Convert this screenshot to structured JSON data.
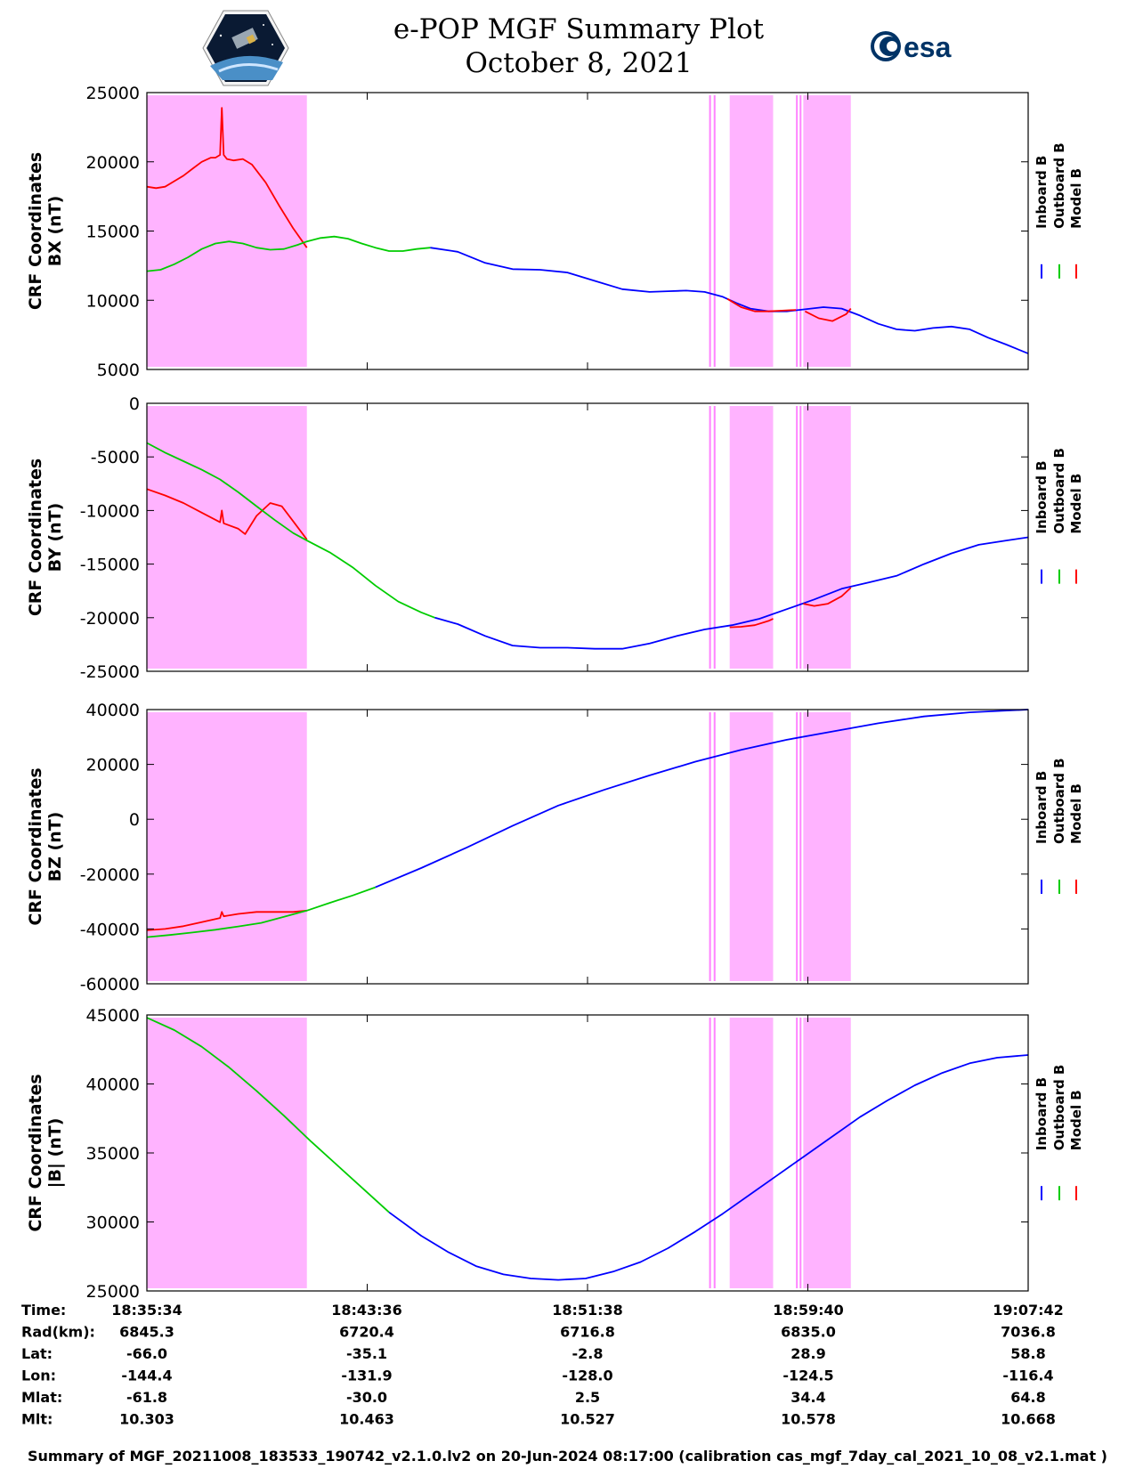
{
  "header": {
    "title": "e-POP MGF Summary Plot",
    "date": "October 8, 2021",
    "left_logo": "cassiope-mission-logo",
    "right_logo_text": "esa"
  },
  "colors": {
    "inboard": "#0000ff",
    "outboard": "#00cc00",
    "model": "#ff0000",
    "shade": "#ffb3ff",
    "shade_line": "#ff66ff"
  },
  "legend": [
    "Inboard B",
    "Outboard B",
    "Model B"
  ],
  "info_table": {
    "labels": [
      "Time:",
      "Rad(km):",
      "Lat:",
      "Lon:",
      "Mlat:",
      "Mlt:"
    ],
    "columns": [
      [
        "18:35:34",
        "6845.3",
        "-66.0",
        "-144.4",
        "-61.8",
        "10.303"
      ],
      [
        "18:43:36",
        "6720.4",
        "-35.1",
        "-131.9",
        "-30.0",
        "10.463"
      ],
      [
        "18:51:38",
        "6716.8",
        "-2.8",
        "-128.0",
        "2.5",
        "10.527"
      ],
      [
        "18:59:40",
        "6835.0",
        "28.9",
        "-124.5",
        "34.4",
        "10.578"
      ],
      [
        "19:07:42",
        "7036.8",
        "58.8",
        "-116.4",
        "64.8",
        "10.668"
      ]
    ]
  },
  "footer": "Summary of MGF_20211008_183533_190742_v2.1.0.lv2 on 20-Jun-2024 08:17:00 (calibration cas_mgf_7day_cal_2021_10_08_v2.1.mat )",
  "chart_data": [
    {
      "type": "line",
      "ylabel": [
        "CRF Coordinates",
        "BX (nT)"
      ],
      "ylim": [
        5000,
        25000
      ],
      "yticks": [
        5000,
        10000,
        15000,
        20000,
        25000
      ],
      "xlim": [
        0,
        1928
      ],
      "xticks": [
        "18:35:34",
        "18:43:36",
        "18:51:38",
        "18:59:40",
        "19:07:42"
      ],
      "shaded_intervals_s": [
        [
          0,
          350
        ],
        [
          1230,
          1234
        ],
        [
          1240,
          1244
        ],
        [
          1275,
          1370
        ],
        [
          1420,
          1424
        ],
        [
          1428,
          1432
        ],
        [
          1436,
          1540
        ]
      ],
      "series": [
        {
          "name": "Model B",
          "color_key": "model",
          "x": [
            0,
            20,
            40,
            60,
            80,
            100,
            120,
            140,
            150,
            160,
            164,
            168,
            175,
            190,
            210,
            230,
            260,
            290,
            320,
            350
          ],
          "values": [
            18200,
            18100,
            18200,
            18600,
            19000,
            19500,
            20000,
            20300,
            20300,
            20500,
            23900,
            20500,
            20200,
            20100,
            20200,
            19800,
            18500,
            16800,
            15200,
            13800
          ]
        },
        {
          "name": "Outboard B",
          "color_key": "outboard",
          "x": [
            0,
            30,
            60,
            90,
            120,
            150,
            180,
            210,
            240,
            270,
            300,
            330,
            350,
            380,
            410,
            440,
            470,
            500,
            530,
            560,
            590,
            620
          ],
          "values": [
            12100,
            12200,
            12600,
            13100,
            13700,
            14100,
            14250,
            14100,
            13800,
            13650,
            13700,
            14000,
            14250,
            14500,
            14600,
            14450,
            14100,
            13800,
            13550,
            13550,
            13700,
            13800
          ]
        },
        {
          "name": "Inboard B",
          "color_key": "inboard",
          "x": [
            620,
            680,
            740,
            800,
            860,
            920,
            980,
            1040,
            1100,
            1140,
            1180,
            1220,
            1260,
            1290,
            1320,
            1360,
            1400,
            1440,
            1480,
            1520,
            1560,
            1600,
            1640,
            1680,
            1720,
            1760,
            1800,
            1840,
            1880,
            1928
          ],
          "values": [
            13800,
            13500,
            12700,
            12250,
            12200,
            12000,
            11400,
            10800,
            10600,
            10650,
            10700,
            10600,
            10250,
            9800,
            9400,
            9200,
            9200,
            9350,
            9500,
            9400,
            8900,
            8300,
            7900,
            7800,
            8000,
            8100,
            7900,
            7300,
            6800,
            6150
          ]
        },
        {
          "name": "Model B",
          "color_key": "model",
          "x": [
            1270,
            1300,
            1330,
            1360,
            1390,
            1420
          ],
          "values": [
            10100,
            9500,
            9200,
            9200,
            9250,
            9300
          ]
        },
        {
          "name": "Model B",
          "color_key": "model",
          "x": [
            1440,
            1470,
            1500,
            1530,
            1540
          ],
          "values": [
            9200,
            8700,
            8500,
            9000,
            9400
          ]
        }
      ]
    },
    {
      "type": "line",
      "ylabel": [
        "CRF Coordinates",
        "BY (nT)"
      ],
      "ylim": [
        -25000,
        0
      ],
      "yticks": [
        -25000,
        -20000,
        -15000,
        -10000,
        -5000,
        0
      ],
      "xlim": [
        0,
        1928
      ],
      "xticks": [
        "18:35:34",
        "18:43:36",
        "18:51:38",
        "18:59:40",
        "19:07:42"
      ],
      "shaded_intervals_s": [
        [
          0,
          350
        ],
        [
          1230,
          1234
        ],
        [
          1240,
          1244
        ],
        [
          1275,
          1370
        ],
        [
          1420,
          1424
        ],
        [
          1428,
          1432
        ],
        [
          1436,
          1540
        ]
      ],
      "series": [
        {
          "name": "Model B",
          "color_key": "model",
          "x": [
            0,
            40,
            80,
            120,
            160,
            164,
            168,
            200,
            215,
            240,
            270,
            295,
            320,
            350
          ],
          "values": [
            -8000,
            -8600,
            -9300,
            -10200,
            -11100,
            -10000,
            -11200,
            -11700,
            -12200,
            -10500,
            -9300,
            -9600,
            -11000,
            -12700
          ]
        },
        {
          "name": "Outboard B",
          "color_key": "outboard",
          "x": [
            0,
            40,
            80,
            120,
            160,
            200,
            240,
            280,
            320,
            350,
            400,
            450,
            500,
            550,
            600,
            630
          ],
          "values": [
            -3700,
            -4600,
            -5400,
            -6200,
            -7100,
            -8300,
            -9600,
            -10900,
            -12100,
            -12800,
            -13900,
            -15300,
            -17000,
            -18500,
            -19500,
            -20000
          ]
        },
        {
          "name": "Inboard B",
          "color_key": "inboard",
          "x": [
            630,
            680,
            740,
            800,
            860,
            920,
            980,
            1040,
            1100,
            1160,
            1220,
            1280,
            1340,
            1400,
            1460,
            1520,
            1580,
            1640,
            1700,
            1760,
            1820,
            1880,
            1928
          ],
          "values": [
            -20000,
            -20600,
            -21700,
            -22600,
            -22800,
            -22800,
            -22900,
            -22900,
            -22400,
            -21700,
            -21100,
            -20700,
            -20100,
            -19200,
            -18300,
            -17300,
            -16700,
            -16100,
            -15000,
            -14000,
            -13200,
            -12800,
            -12500
          ]
        },
        {
          "name": "Model B",
          "color_key": "model",
          "x": [
            1275,
            1300,
            1330,
            1360,
            1370
          ],
          "values": [
            -20900,
            -20850,
            -20700,
            -20300,
            -20100
          ]
        },
        {
          "name": "Model B",
          "color_key": "model",
          "x": [
            1436,
            1460,
            1490,
            1520,
            1540
          ],
          "values": [
            -18700,
            -18900,
            -18700,
            -18000,
            -17200
          ]
        }
      ]
    },
    {
      "type": "line",
      "ylabel": [
        "CRF Coordinates",
        "BZ (nT)"
      ],
      "ylim": [
        -60000,
        40000
      ],
      "yticks": [
        -60000,
        -40000,
        -20000,
        0,
        20000,
        40000
      ],
      "xlim": [
        0,
        1928
      ],
      "xticks": [
        "18:35:34",
        "18:43:36",
        "18:51:38",
        "18:59:40",
        "19:07:42"
      ],
      "shaded_intervals_s": [
        [
          0,
          350
        ],
        [
          1230,
          1234
        ],
        [
          1240,
          1244
        ],
        [
          1275,
          1370
        ],
        [
          1420,
          1424
        ],
        [
          1428,
          1432
        ],
        [
          1436,
          1540
        ]
      ],
      "series": [
        {
          "name": "Model B",
          "color_key": "model",
          "x": [
            0,
            40,
            80,
            120,
            160,
            164,
            168,
            200,
            240,
            280,
            320,
            350
          ],
          "values": [
            -40500,
            -40000,
            -39000,
            -37500,
            -36000,
            -33800,
            -35400,
            -34500,
            -33800,
            -33800,
            -33800,
            -33300
          ]
        },
        {
          "name": "Outboard B",
          "color_key": "outboard",
          "x": [
            0,
            50,
            100,
            150,
            200,
            250,
            300,
            350,
            400,
            450,
            500
          ],
          "values": [
            -43000,
            -42200,
            -41300,
            -40300,
            -39100,
            -37800,
            -35600,
            -33300,
            -30500,
            -27800,
            -24800
          ]
        },
        {
          "name": "Inboard B",
          "color_key": "inboard",
          "x": [
            500,
            600,
            700,
            800,
            900,
            1000,
            1100,
            1200,
            1300,
            1400,
            1500,
            1600,
            1700,
            1800,
            1928
          ],
          "values": [
            -24800,
            -17800,
            -10300,
            -2400,
            5000,
            10700,
            16000,
            21000,
            25300,
            29000,
            32000,
            35000,
            37500,
            39000,
            40000
          ]
        }
      ]
    },
    {
      "type": "line",
      "ylabel": [
        "CRF Coordinates",
        "|B| (nT)"
      ],
      "ylim": [
        25000,
        45000
      ],
      "yticks": [
        25000,
        30000,
        35000,
        40000,
        45000
      ],
      "xlim": [
        0,
        1928
      ],
      "xticks": [
        "18:35:34",
        "18:43:36",
        "18:51:38",
        "18:59:40",
        "19:07:42"
      ],
      "shaded_intervals_s": [
        [
          0,
          350
        ],
        [
          1230,
          1234
        ],
        [
          1240,
          1244
        ],
        [
          1275,
          1370
        ],
        [
          1420,
          1424
        ],
        [
          1428,
          1432
        ],
        [
          1436,
          1540
        ]
      ],
      "series": [
        {
          "name": "Outboard B",
          "color_key": "outboard",
          "x": [
            0,
            60,
            120,
            180,
            240,
            300,
            360,
            420,
            480,
            530
          ],
          "values": [
            44800,
            43900,
            42700,
            41200,
            39500,
            37700,
            35800,
            34000,
            32200,
            30700
          ]
        },
        {
          "name": "Inboard B",
          "color_key": "inboard",
          "x": [
            530,
            600,
            660,
            720,
            780,
            840,
            900,
            960,
            1020,
            1080,
            1140,
            1200,
            1260,
            1320,
            1380,
            1440,
            1500,
            1560,
            1620,
            1680,
            1740,
            1800,
            1860,
            1928
          ],
          "values": [
            30700,
            29000,
            27800,
            26800,
            26200,
            25900,
            25800,
            25900,
            26400,
            27100,
            28100,
            29300,
            30600,
            32000,
            33400,
            34800,
            36200,
            37600,
            38800,
            39900,
            40800,
            41500,
            41900,
            42100
          ]
        }
      ]
    }
  ]
}
